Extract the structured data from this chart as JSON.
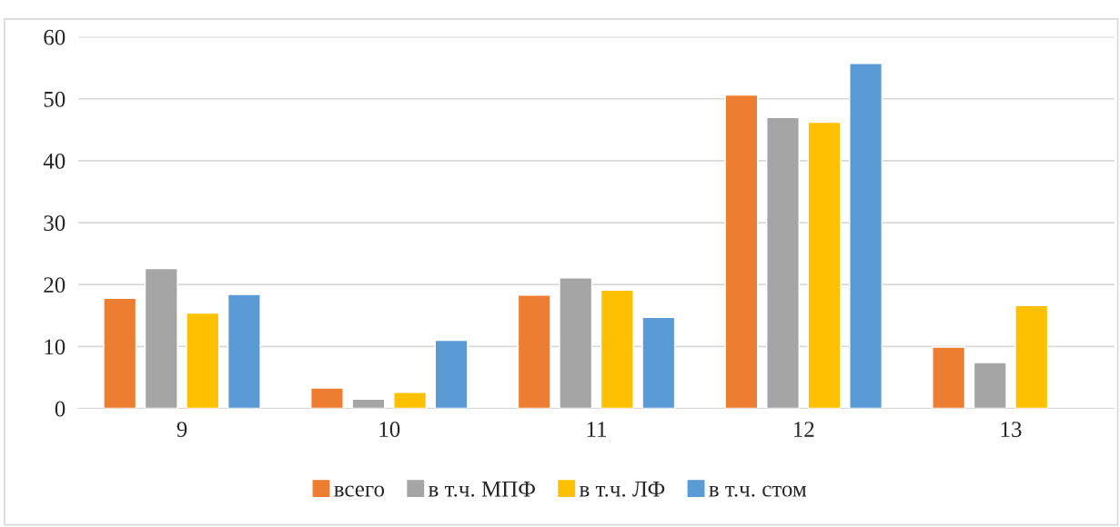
{
  "chart_data": {
    "type": "bar",
    "categories": [
      "9",
      "10",
      "11",
      "12",
      "13"
    ],
    "series": [
      {
        "name": "всего",
        "color": "#ed7d31",
        "values": [
          17.8,
          3.3,
          18.3,
          50.6,
          9.9
        ]
      },
      {
        "name": "в т.ч. МПФ",
        "color": "#a5a5a5",
        "values": [
          22.6,
          1.5,
          21.1,
          47.0,
          7.4
        ]
      },
      {
        "name": "в т.ч. ЛФ",
        "color": "#ffc000",
        "values": [
          15.4,
          2.6,
          19.1,
          46.2,
          16.6
        ]
      },
      {
        "name": "в т.ч. стом",
        "color": "#5b9bd5",
        "values": [
          18.4,
          11.0,
          14.7,
          55.7,
          null
        ]
      }
    ],
    "ylim": [
      0,
      60
    ],
    "yticks": [
      0,
      10,
      20,
      30,
      40,
      50,
      60
    ],
    "grid": "y",
    "legend": "bottom"
  }
}
